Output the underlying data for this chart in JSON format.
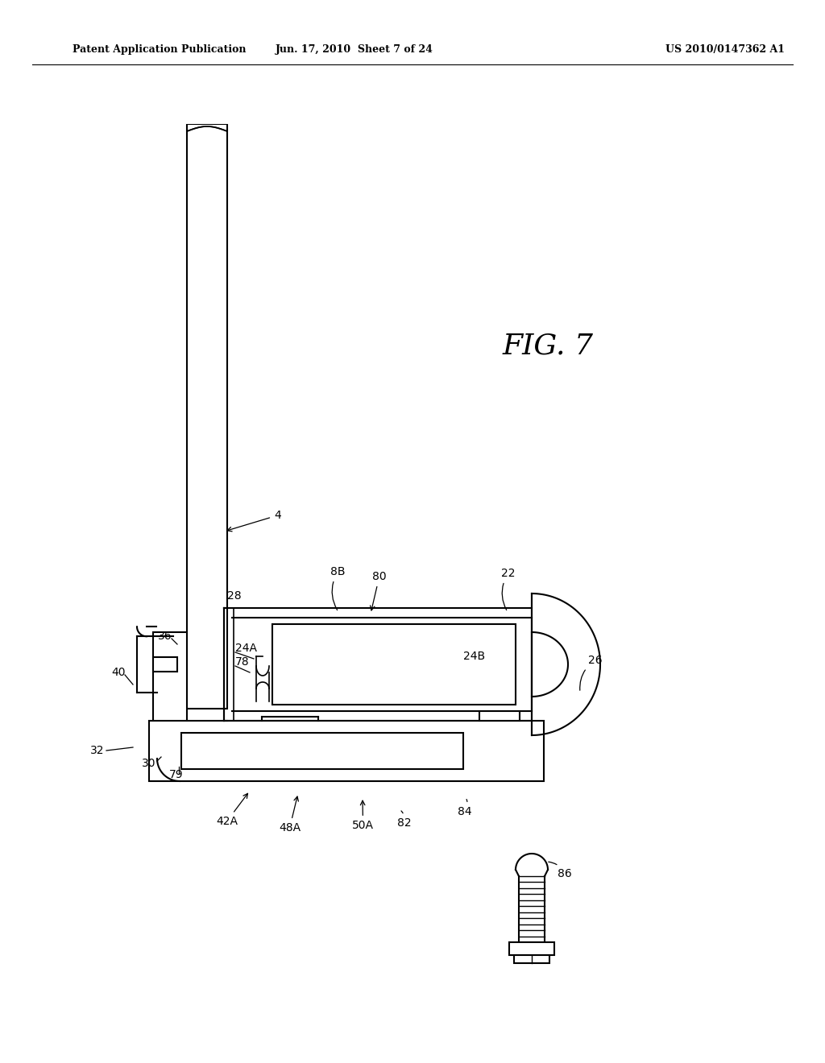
{
  "bg_color": "#ffffff",
  "line_color": "#000000",
  "header_left": "Patent Application Publication",
  "header_mid": "Jun. 17, 2010  Sheet 7 of 24",
  "header_right": "US 2010/0147362 A1",
  "fig_label": "FIG. 7"
}
